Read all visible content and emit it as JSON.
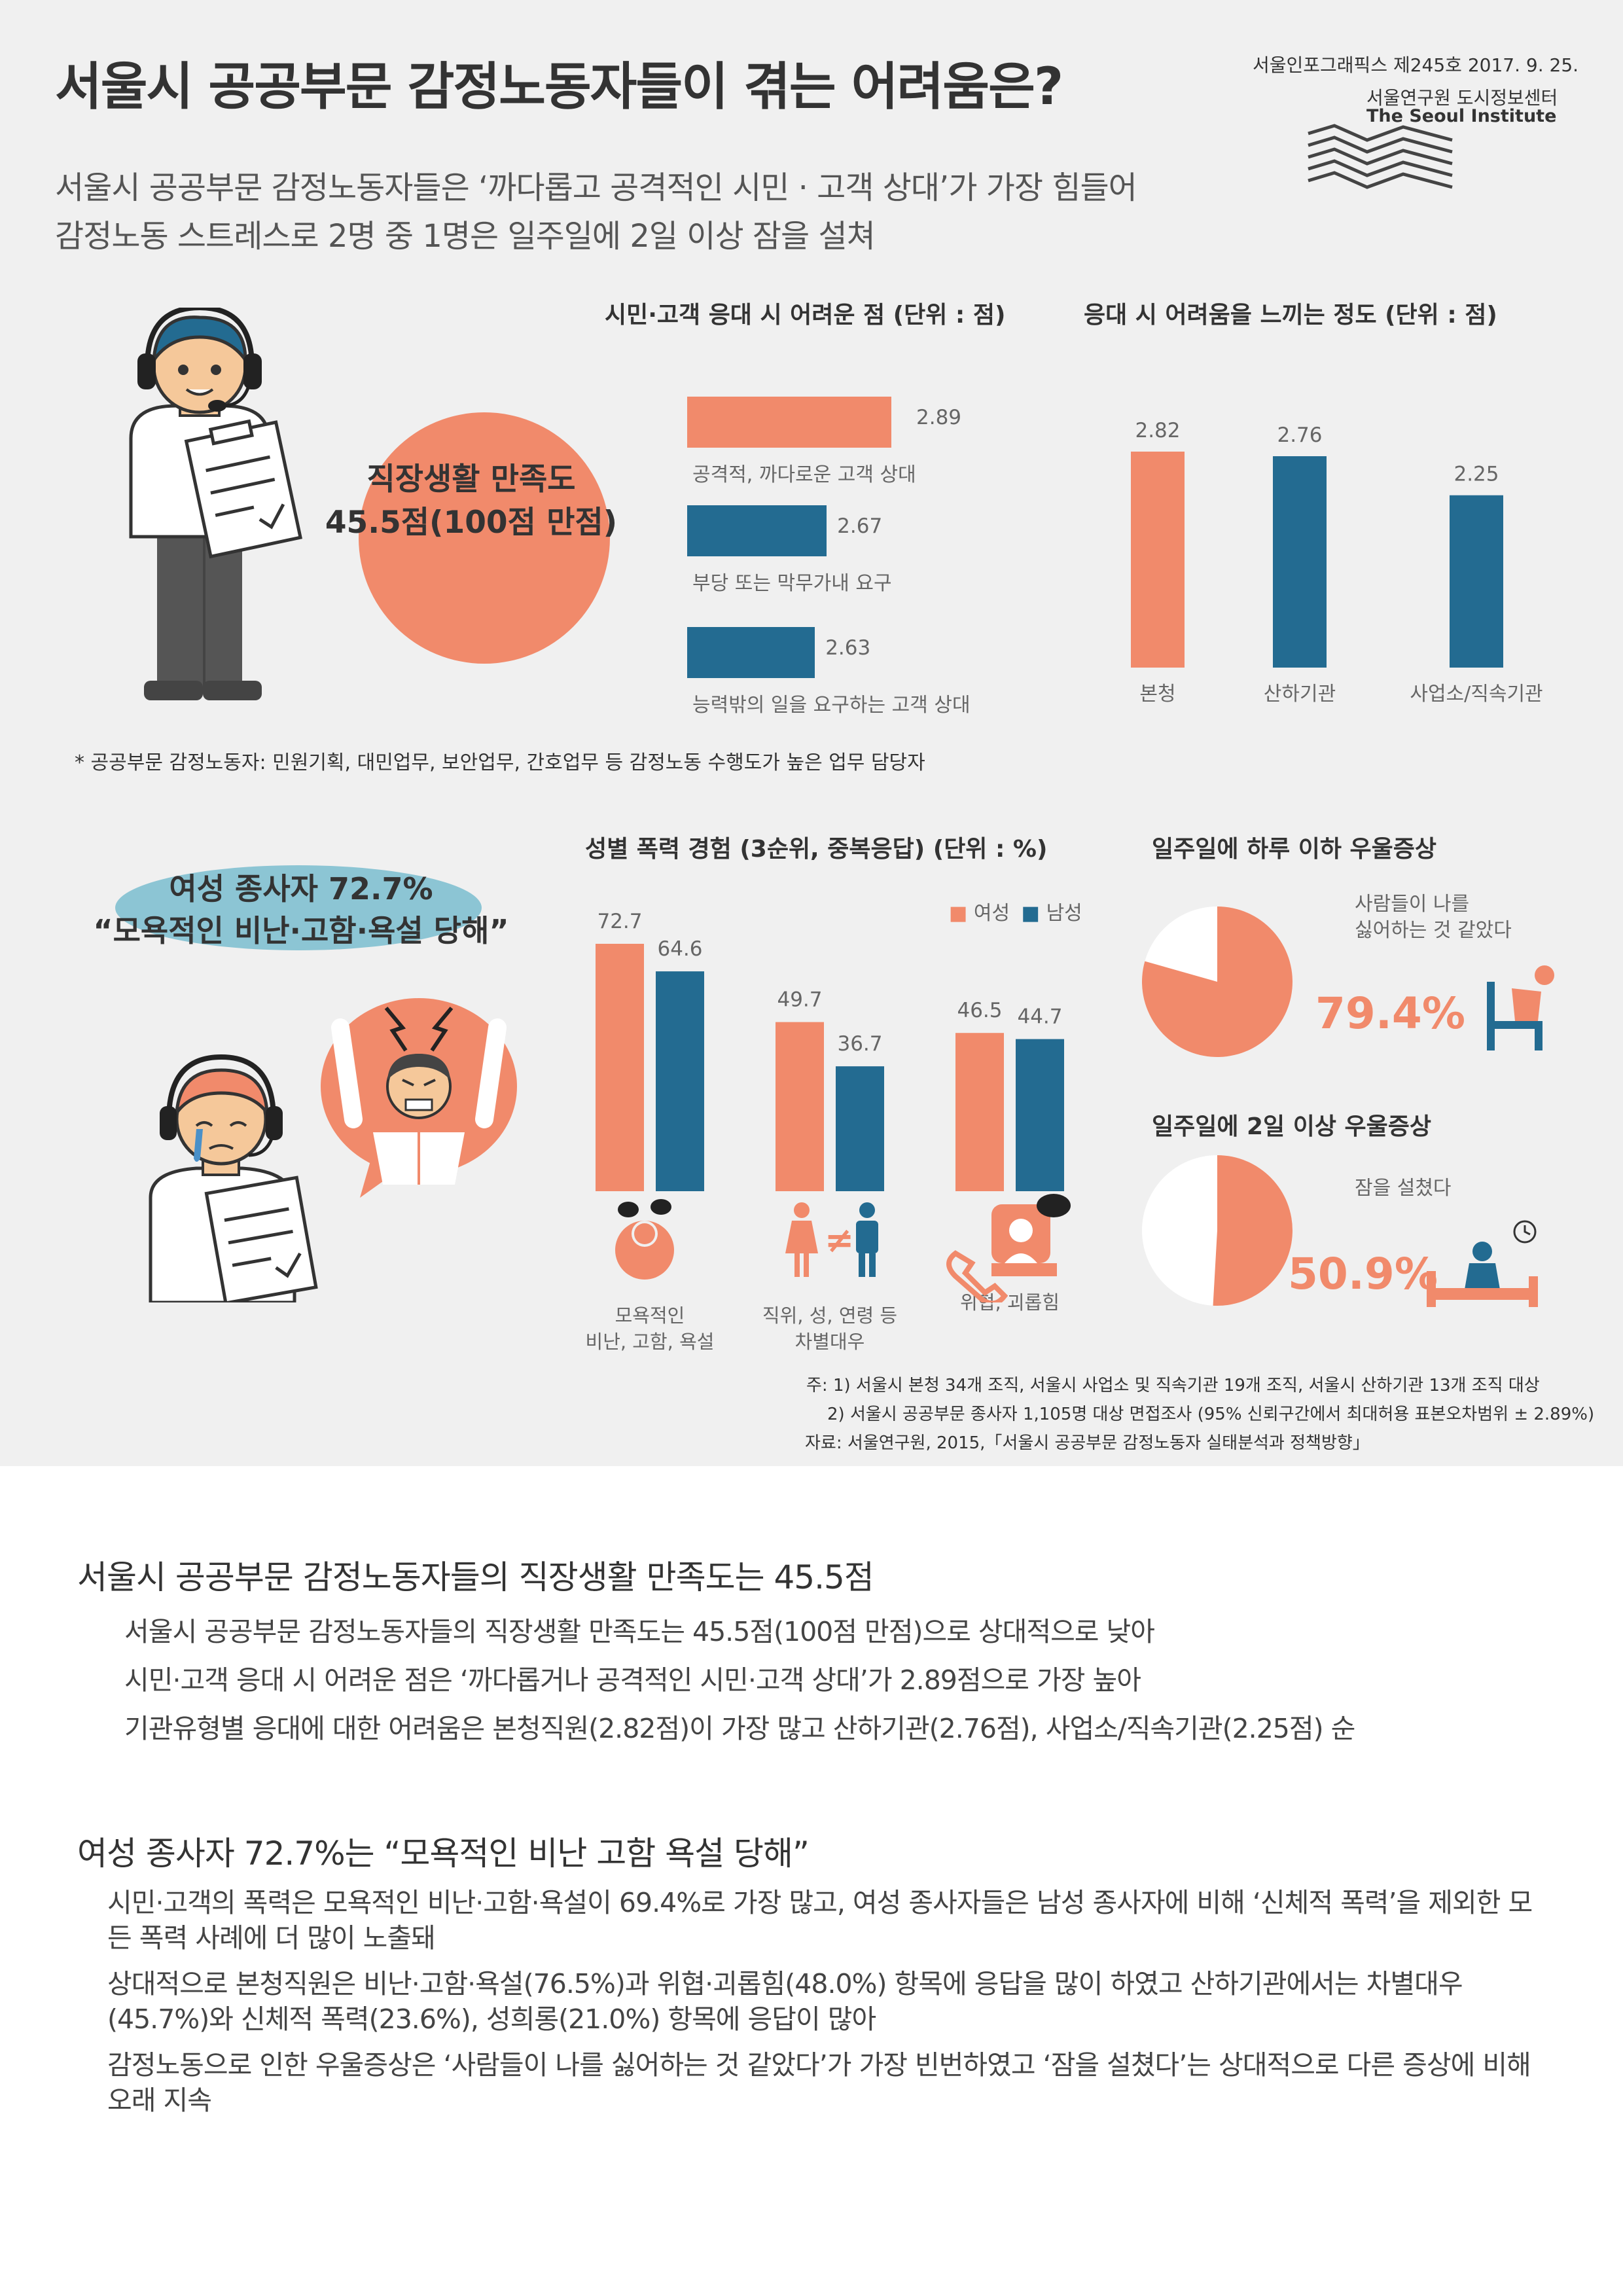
{
  "header": {
    "title": "서울시 공공부문 감정노동자들이 겪는 어려움은?",
    "meta_issue": "서울인포그래픽스 제245호 2017. 9. 25.",
    "meta_org": "서울연구원 도시정보센터",
    "meta_org_en": "The Seoul Institute",
    "subtitle_line1": "서울시 공공부문 감정노동자들은 ‘까다롭고 공격적인 시민 · 고객 상대’가 가장 힘들어",
    "subtitle_line2": "감정노동 스트레스로 2명 중 1명은 일주일에 2일 이상 잠을 설쳐"
  },
  "satisfaction": {
    "line1": "직장생활 만족도",
    "line2": "45.5점(100점 만점)"
  },
  "footnote_workers": "* 공공부문 감정노동자: 민원기획, 대민업무, 보안업무, 간호업무 등 감정노동 수행도가 높은 업무 담당자",
  "female_callout": {
    "line1": "여성 종사자 72.7%",
    "line2": "“모욕적인 비난·고함·욕설 당해”"
  },
  "colors": {
    "coral": "#f18a6b",
    "blue": "#236b91",
    "light_blue": "#8cc5d4",
    "bg": "#f0f0f0"
  },
  "chart_data": [
    {
      "type": "bar",
      "orientation": "horizontal",
      "title": "시민·고객 응대 시 어려운 점 (단위 : 점)",
      "categories": [
        "공격적, 까다로운 고객 상대",
        "부당 또는 막무가내 요구",
        "능력밖의 일을 요구하는 고객 상대"
      ],
      "values": [
        2.89,
        2.67,
        2.63
      ],
      "value_labels": [
        "2.89",
        "2.67",
        "2.63"
      ]
    },
    {
      "type": "bar",
      "title": "응대 시 어려움을 느끼는 정도 (단위 : 점)",
      "categories": [
        "본청",
        "산하기관",
        "사업소/직속기관"
      ],
      "values": [
        2.82,
        2.76,
        2.25
      ],
      "value_labels": [
        "2.82",
        "2.76",
        "2.25"
      ]
    },
    {
      "type": "bar",
      "title": "성별 폭력 경험 (3순위, 중복응답) (단위 : %)",
      "categories": [
        "모욕적인|비난, 고함, 욕설",
        "직위, 성, 연령 등|차별대우",
        "위협, 괴롭힘"
      ],
      "series": [
        {
          "name": "여성",
          "values": [
            72.7,
            49.7,
            46.5
          ],
          "labels": [
            "72.7",
            "49.7",
            "46.5"
          ]
        },
        {
          "name": "남성",
          "values": [
            64.6,
            36.7,
            44.7
          ],
          "labels": [
            "64.6",
            "36.7",
            "44.7"
          ]
        }
      ],
      "legend_position": "top-right"
    },
    {
      "type": "pie",
      "title": "일주일에 하루 이하 우울증상",
      "label": "사람들이 나를|싫어하는 것 같았다",
      "value": 79.4,
      "value_label": "79.4%"
    },
    {
      "type": "pie",
      "title": "일주일에 2일 이상 우울증상",
      "label": "잠을 설쳤다",
      "value": 50.9,
      "value_label": "50.9%"
    }
  ],
  "notes": {
    "n1": "주: 1) 서울시 본청 34개 조직, 서울시 사업소 및 직속기관 19개 조직, 서울시 산하기관 13개 조직 대상",
    "n2": "2) 서울시 공공부문 종사자 1,105명 대상 면접조사 (95% 신뢰구간에서 최대허용 표본오차범위 ± 2.89%)",
    "source": "자료: 서울연구원, 2015,「서울시 공공부문 감정노동자 실태분석과 정책방향」"
  },
  "section1": {
    "heading": "서울시 공공부문 감정노동자들의 직장생활 만족도는 45.5점",
    "bullets": [
      "서울시 공공부문 감정노동자들의 직장생활 만족도는 45.5점(100점 만점)으로 상대적으로 낮아",
      "시민·고객 응대 시 어려운 점은 ‘까다롭거나 공격적인 시민·고객 상대’가 2.89점으로 가장 높아",
      "기관유형별 응대에 대한 어려움은 본청직원(2.82점)이 가장 많고 산하기관(2.76점), 사업소/직속기관(2.25점) 순"
    ]
  },
  "section2": {
    "heading": "여성 종사자 72.7%는 “모욕적인 비난 고함 욕설 당해”",
    "bullets": [
      "시민·고객의 폭력은 모욕적인 비난·고함·욕설이 69.4%로 가장 많고, 여성 종사자들은 남성 종사자에 비해 ‘신체적 폭력’을 제외한 모든 폭력 사례에 더 많이 노출돼",
      "상대적으로 본청직원은 비난·고함·욕설(76.5%)과 위협·괴롭힘(48.0%) 항목에 응답을 많이 하였고 산하기관에서는 차별대우(45.7%)와 신체적 폭력(23.6%), 성희롱(21.0%) 항목에 응답이 많아",
      "감정노동으로 인한 우울증상은 ‘사람들이 나를 싫어하는 것 같았다’가 가장 빈번하였고 ‘잠을 설쳤다’는 상대적으로 다른 증상에 비해 오래 지속"
    ]
  }
}
